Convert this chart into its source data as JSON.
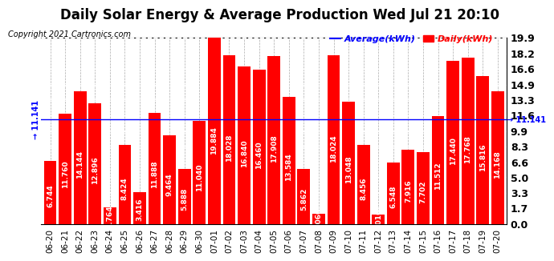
{
  "title": "Daily Solar Energy & Average Production Wed Jul 21 20:10",
  "copyright": "Copyright 2021 Cartronics.com",
  "categories": [
    "06-20",
    "06-21",
    "06-22",
    "06-23",
    "06-24",
    "06-25",
    "06-26",
    "06-27",
    "06-28",
    "06-29",
    "06-30",
    "07-01",
    "07-02",
    "07-03",
    "07-04",
    "07-05",
    "07-06",
    "07-07",
    "07-08",
    "07-09",
    "07-10",
    "07-11",
    "07-12",
    "07-13",
    "07-14",
    "07-15",
    "07-16",
    "07-17",
    "07-18",
    "07-19",
    "07-20"
  ],
  "values": [
    6.744,
    11.76,
    14.144,
    12.896,
    1.764,
    8.424,
    3.416,
    11.888,
    9.464,
    5.888,
    11.04,
    19.884,
    18.028,
    16.84,
    16.46,
    17.908,
    13.584,
    5.862,
    1.06,
    18.024,
    13.048,
    8.456,
    1.016,
    6.548,
    7.916,
    7.702,
    11.512,
    17.44,
    17.768,
    15.816,
    14.168
  ],
  "bar_labels": [
    "6.744",
    "11.760",
    "14.144",
    "12.896",
    "1.764",
    "8.424",
    "3.416",
    "11.888",
    "9.464",
    "5.888",
    "11.040",
    "19.884",
    "18.028",
    "16.840",
    "16.460",
    "17.908",
    "13.584",
    "5.862",
    "1.060",
    "18.024",
    "13.048",
    "8.456",
    "1.016",
    "6.548",
    "7.916",
    "7.702",
    "11.512",
    "17.440",
    "17.768",
    "15.816",
    "14.168"
  ],
  "average": 11.141,
  "bar_color": "#ff0000",
  "average_color": "#0000ff",
  "avg_label": "Average(kWh)",
  "daily_label": "Daily(kWh)",
  "yticks": [
    0.0,
    1.7,
    3.3,
    5.0,
    6.6,
    8.3,
    9.9,
    11.6,
    13.3,
    14.9,
    16.6,
    18.2,
    19.9
  ],
  "background_color": "#ffffff",
  "grid_color": "#aaaaaa",
  "title_fontsize": 12,
  "bar_label_fontsize": 6.5,
  "tick_fontsize": 7.5,
  "ytick_fontsize": 9
}
